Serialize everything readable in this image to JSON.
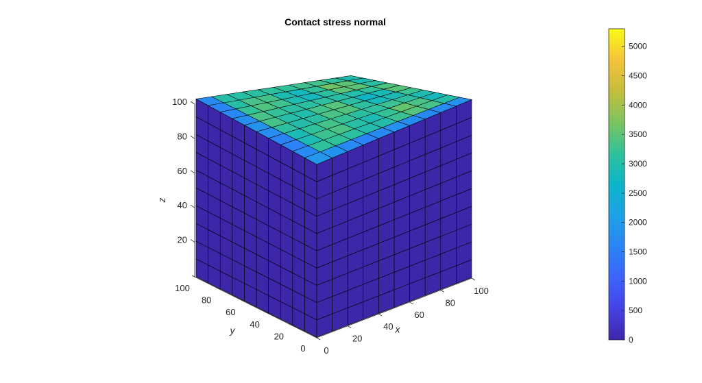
{
  "chart_data": {
    "type": "surface3d",
    "title": "Contact stress normal",
    "xlabel": "x",
    "ylabel": "y",
    "zlabel": "z",
    "xlim": [
      0,
      100
    ],
    "ylim": [
      0,
      100
    ],
    "zlim": [
      0,
      100
    ],
    "x_ticks": [
      "0",
      "20",
      "40",
      "60",
      "80",
      "100"
    ],
    "y_ticks": [
      "0",
      "20",
      "40",
      "60",
      "80",
      "100"
    ],
    "z_ticks": [
      "20",
      "40",
      "60",
      "80",
      "100"
    ],
    "mesh_divisions": {
      "x": 10,
      "y": 10,
      "z": 10
    },
    "colormap": "parula",
    "colorbar": {
      "min": 0,
      "max": 5300,
      "ticks": [
        "0",
        "500",
        "1000",
        "1500",
        "2000",
        "2500",
        "3000",
        "3500",
        "4000",
        "4500",
        "5000"
      ],
      "placement": "right"
    },
    "faces": {
      "side_faces_stress": 0,
      "top_face_stress_range": [
        2600,
        3700
      ]
    },
    "grid": false
  }
}
